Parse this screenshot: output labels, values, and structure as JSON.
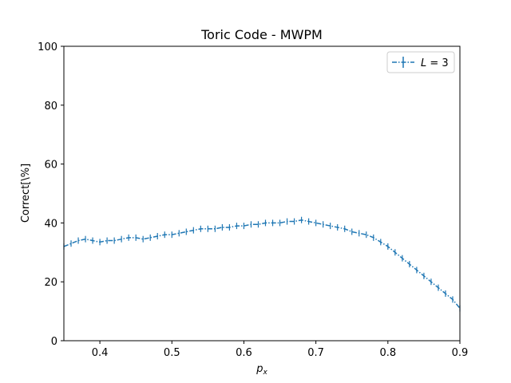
{
  "chart_data": {
    "type": "line",
    "title": "Toric Code - MWPM",
    "xlabel": "p",
    "xlabel_sub": "x",
    "ylabel": "Correct[\\%]",
    "xlim": [
      0.35,
      0.9
    ],
    "ylim": [
      0,
      100
    ],
    "xticks": [
      "0.4",
      "0.5",
      "0.6",
      "0.7",
      "0.8",
      "0.9"
    ],
    "yticks": [
      "0",
      "20",
      "40",
      "60",
      "80",
      "100"
    ],
    "grid": false,
    "legend_position": "top-right",
    "series": [
      {
        "name": "L = 3",
        "legend_italic": "L",
        "legend_rest": " = 3",
        "color": "#1f77b4",
        "style": "dash-dot with error bars",
        "x": [
          0.35,
          0.36,
          0.37,
          0.38,
          0.39,
          0.4,
          0.41,
          0.42,
          0.43,
          0.44,
          0.45,
          0.46,
          0.47,
          0.48,
          0.49,
          0.5,
          0.51,
          0.52,
          0.53,
          0.54,
          0.55,
          0.56,
          0.57,
          0.58,
          0.59,
          0.6,
          0.61,
          0.62,
          0.63,
          0.64,
          0.65,
          0.66,
          0.67,
          0.68,
          0.69,
          0.7,
          0.71,
          0.72,
          0.73,
          0.74,
          0.75,
          0.76,
          0.77,
          0.78,
          0.79,
          0.8,
          0.81,
          0.82,
          0.83,
          0.84,
          0.85,
          0.86,
          0.87,
          0.88,
          0.89,
          0.9
        ],
        "y": [
          32,
          33,
          34,
          34.5,
          34,
          33.5,
          34,
          34,
          34.5,
          35,
          35,
          34.5,
          35,
          35.5,
          36,
          36,
          36.5,
          37,
          37.5,
          38,
          38,
          38,
          38.5,
          38.5,
          39,
          39,
          39.5,
          39.5,
          40,
          40,
          40,
          40.5,
          40.5,
          41,
          40.5,
          40,
          39.5,
          39,
          38.5,
          38,
          37,
          36.5,
          36,
          35,
          33.5,
          32,
          30,
          28,
          26,
          24,
          22,
          20,
          18,
          16,
          14,
          11
        ]
      }
    ]
  }
}
